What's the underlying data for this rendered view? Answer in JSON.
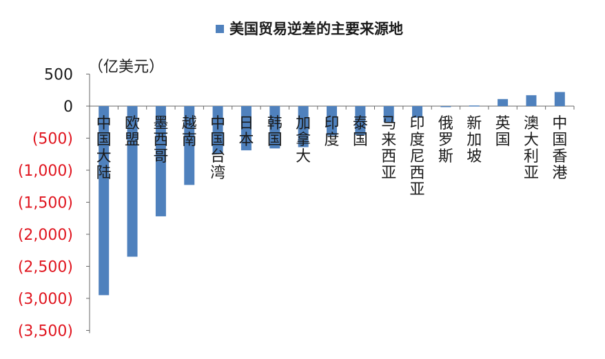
{
  "chart_data": {
    "type": "bar",
    "legend": {
      "position": "top-center"
    },
    "unit_label": "（亿美元）",
    "ylim": [
      -3500,
      500
    ],
    "grid": false,
    "yticks": [
      {
        "value": 500,
        "label": "500",
        "color": "#1a1a1a"
      },
      {
        "value": 0,
        "label": "0",
        "color": "#1a1a1a"
      },
      {
        "value": -500,
        "label": "(500)",
        "color": "#e0141e"
      },
      {
        "value": -1000,
        "label": "(1,000)",
        "color": "#e0141e"
      },
      {
        "value": -1500,
        "label": "(1,500)",
        "color": "#e0141e"
      },
      {
        "value": -2000,
        "label": "(2,000)",
        "color": "#e0141e"
      },
      {
        "value": -2500,
        "label": "(2,500)",
        "color": "#e0141e"
      },
      {
        "value": -3000,
        "label": "(3,000)",
        "color": "#e0141e"
      },
      {
        "value": -3500,
        "label": "(3,500)",
        "color": "#e0141e"
      }
    ],
    "categories": [
      "中国大陆",
      "欧盟",
      "墨西哥",
      "越南",
      "中国台湾",
      "日本",
      "韩国",
      "加拿大",
      "印度",
      "泰国",
      "马来西亚",
      "印度尼西亚",
      "俄罗斯",
      "新加坡",
      "英国",
      "澳大利亚",
      "中国香港"
    ],
    "series": [
      {
        "name": "美国贸易逆差的主要来源地",
        "color": "#4f81bd",
        "values": [
          -2950,
          -2350,
          -1720,
          -1230,
          -740,
          -690,
          -660,
          -640,
          -460,
          -450,
          -250,
          -180,
          -10,
          10,
          110,
          170,
          220
        ]
      }
    ]
  }
}
